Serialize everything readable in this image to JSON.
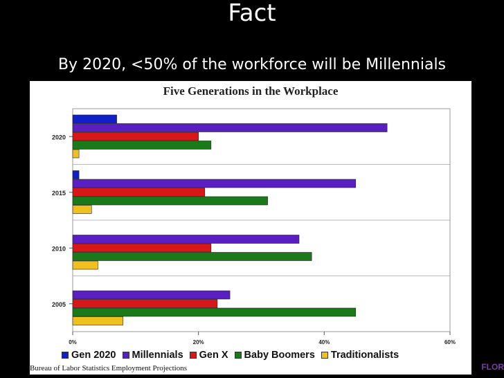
{
  "slide": {
    "title": "Fact",
    "subtitle": "By 2020, <50% of the workforce will be Millennials",
    "corner_logo_text": "FLOR"
  },
  "chart_data": {
    "type": "bar",
    "orientation": "horizontal",
    "title": "Five Generations in the Workplace",
    "source": "Bureau of Labor Statistics Employment Projections",
    "categories": [
      "2020",
      "2015",
      "2010",
      "2005"
    ],
    "series": [
      {
        "name": "Gen 2020",
        "color": "#1020c8",
        "values": [
          7,
          1,
          0,
          0
        ]
      },
      {
        "name": "Millennials",
        "color": "#5a1fc0",
        "values": [
          50,
          45,
          36,
          25
        ]
      },
      {
        "name": "Gen X",
        "color": "#d81818",
        "values": [
          20,
          21,
          22,
          23
        ]
      },
      {
        "name": "Baby Boomers",
        "color": "#1a7a1a",
        "values": [
          22,
          31,
          38,
          45
        ]
      },
      {
        "name": "Traditionalists",
        "color": "#f0c020",
        "values": [
          1,
          3,
          4,
          8
        ]
      }
    ],
    "x_ticks": [
      "0%",
      "20%",
      "40%",
      "60%"
    ],
    "xlim": [
      0,
      60
    ],
    "grid": true,
    "legend_position": "bottom"
  }
}
